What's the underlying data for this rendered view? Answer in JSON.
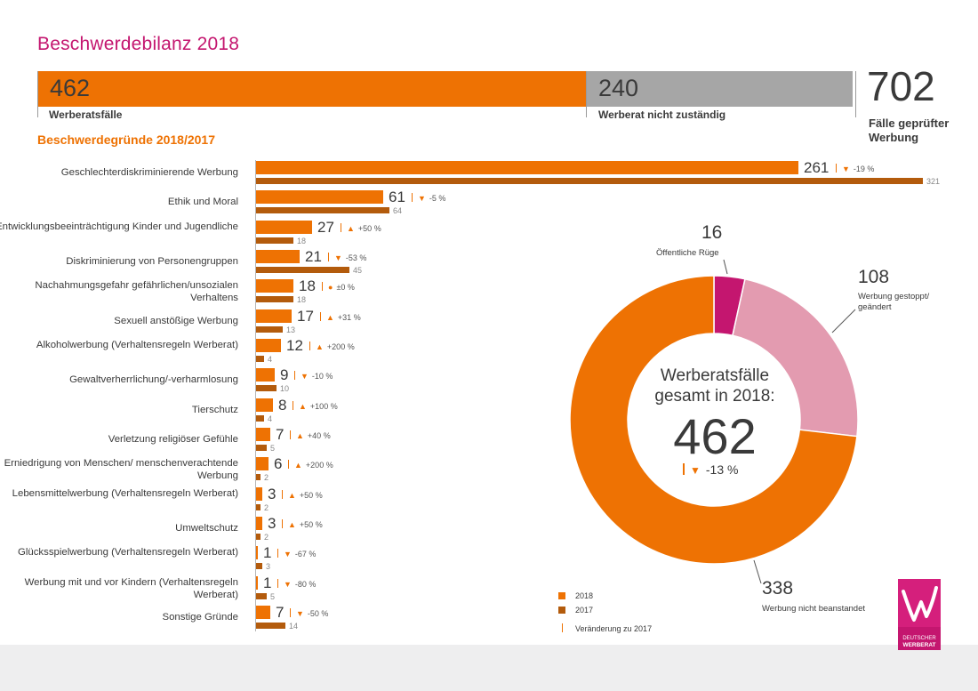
{
  "title": "Beschwerdebilanz 2018",
  "top": {
    "werberat": {
      "value": "462",
      "label": "Werberatsfälle"
    },
    "nicht_zustaendig": {
      "value": "240",
      "label": "Werberat nicht zuständig"
    },
    "total": {
      "value": "702",
      "label": "Fälle geprüfter Werbung"
    }
  },
  "section_title": "Beschwerdegründe 2018/2017",
  "colors": {
    "orange": "#ee7203",
    "dark_orange": "#b35b0c",
    "grey": "#a6a6a6",
    "magenta": "#c4166f",
    "pink": "#e39bb0"
  },
  "chart_data": [
    {
      "type": "bar",
      "title": "Beschwerdegründe 2018/2017",
      "categories": [
        "Geschlechterdiskriminierende Werbung",
        "Ethik und Moral",
        "Entwicklungsbeeinträchtigung Kinder und Jugendliche",
        "Diskriminierung von Personengruppen",
        "Nachahmungsgefahr gefährlichen/unsozialen Verhaltens",
        "Sexuell anstößige Werbung",
        "Alkoholwerbung (Verhaltensregeln Werberat)",
        "Gewaltverherrlichung/-verharmlosung",
        "Tierschutz",
        "Verletzung religiöser Gefühle",
        "Erniedrigung von Menschen/ menschenverachtende Werbung",
        "Lebensmittelwerbung (Verhaltensregeln Werberat)",
        "Umweltschutz",
        "Glücksspielwerbung (Verhaltensregeln Werberat)",
        "Werbung mit und vor Kindern (Verhaltensregeln Werberat)",
        "Sonstige Gründe"
      ],
      "series": [
        {
          "name": "2018",
          "values": [
            261,
            61,
            27,
            21,
            18,
            17,
            12,
            9,
            8,
            7,
            6,
            3,
            3,
            1,
            1,
            7
          ]
        },
        {
          "name": "2017",
          "values": [
            321,
            64,
            18,
            45,
            18,
            13,
            4,
            10,
            4,
            5,
            2,
            2,
            2,
            3,
            5,
            14
          ]
        }
      ],
      "changes": [
        "-19 %",
        "-5 %",
        "+50 %",
        "-53 %",
        "±0 %",
        "+31 %",
        "+200 %",
        "-10 %",
        "+100 %",
        "+40 %",
        "+200 %",
        "+50 %",
        "+50 %",
        "-67 %",
        "-80 %",
        "-50 %"
      ],
      "change_direction": [
        "down",
        "down",
        "up",
        "down",
        "same",
        "up",
        "up",
        "down",
        "up",
        "up",
        "up",
        "up",
        "up",
        "down",
        "down",
        "down"
      ],
      "legend": [
        "2018",
        "2017",
        "Veränderung zu 2017"
      ]
    },
    {
      "type": "pie",
      "center_text": "Werberatsfälle gesamt in 2018:",
      "center_value": "462",
      "center_change": "-13 %",
      "slices": [
        {
          "label": "Öffentliche Rüge",
          "value": 16,
          "color": "#c4166f"
        },
        {
          "label": "Werbung gestoppt/ geändert",
          "value": 108,
          "color": "#e39bb0"
        },
        {
          "label": "Werbung nicht beanstandet",
          "value": 338,
          "color": "#ee7203"
        }
      ]
    }
  ],
  "logo": {
    "line1": "DEUTSCHER",
    "line2": "WERBERAT"
  }
}
